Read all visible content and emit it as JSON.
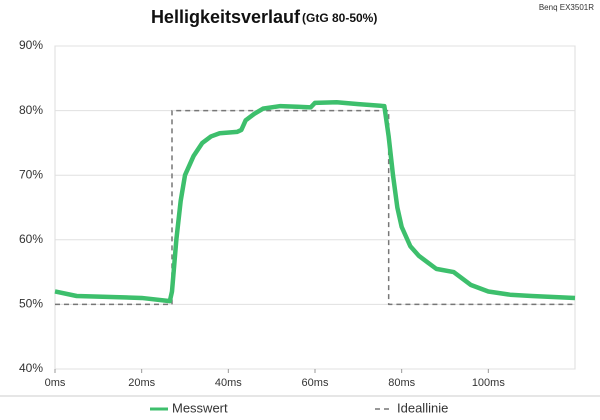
{
  "chart_data": {
    "type": "line",
    "title": "Helligkeitsverlauf",
    "subtitle": "(GtG 80-50%)",
    "annotation": "Benq EX3501R",
    "xlim": [
      0,
      120
    ],
    "ylim": [
      40,
      90
    ],
    "xticks": [
      {
        "value": 0,
        "label": "0ms"
      },
      {
        "value": 20,
        "label": "20ms"
      },
      {
        "value": 40,
        "label": "40ms"
      },
      {
        "value": 60,
        "label": "60ms"
      },
      {
        "value": 80,
        "label": "80ms"
      },
      {
        "value": 100,
        "label": "100ms"
      }
    ],
    "yticks": [
      {
        "value": 40,
        "label": "40%"
      },
      {
        "value": 50,
        "label": "50%"
      },
      {
        "value": 60,
        "label": "60%"
      },
      {
        "value": 70,
        "label": "70%"
      },
      {
        "value": 80,
        "label": "80%"
      },
      {
        "value": 90,
        "label": "90%"
      }
    ],
    "grid": true,
    "legend": "bottom",
    "series": [
      {
        "name": "Messwert",
        "color": "#3dbf6c",
        "dash": false,
        "x": [
          0,
          5,
          10,
          20,
          26.5,
          27,
          28,
          29,
          30,
          32,
          34,
          36,
          38,
          42,
          43,
          44,
          46,
          48,
          52,
          56,
          59,
          60,
          65,
          70,
          76,
          77,
          78,
          79,
          80,
          82,
          84,
          86,
          88,
          92,
          94,
          96,
          100,
          105,
          110,
          120
        ],
        "values": [
          52,
          51.3,
          51.2,
          51,
          50.5,
          52,
          60,
          66,
          70,
          73,
          75,
          76,
          76.5,
          76.7,
          77,
          78.5,
          79.5,
          80.3,
          80.7,
          80.6,
          80.5,
          81.2,
          81.3,
          81,
          80.7,
          76,
          70,
          65,
          62,
          59,
          57.5,
          56.5,
          55.5,
          55,
          54,
          53,
          52,
          51.5,
          51.3,
          51
        ]
      },
      {
        "name": "Ideallinie",
        "color": "#777777",
        "dash": true,
        "x": [
          0,
          27,
          27,
          77,
          77,
          120
        ],
        "values": [
          50,
          50,
          80,
          80,
          50,
          50
        ]
      }
    ]
  }
}
